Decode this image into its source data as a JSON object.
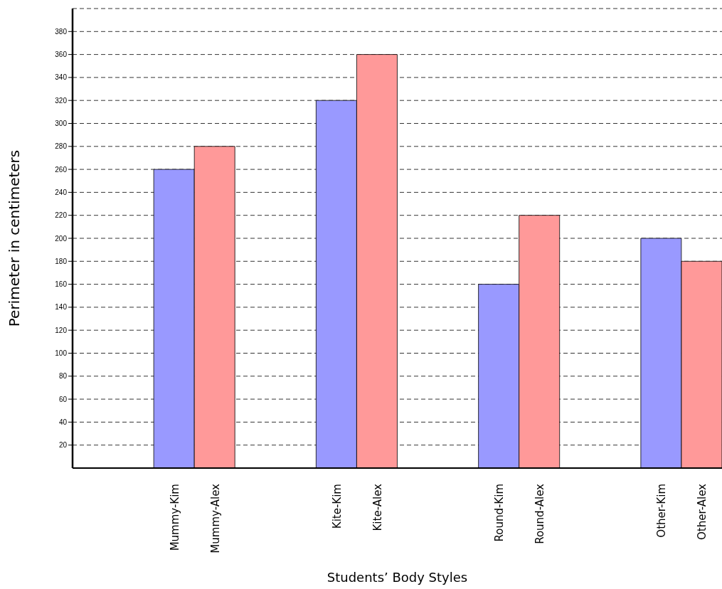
{
  "chart_data": {
    "type": "bar",
    "xlabel": "Students’ Body Styles",
    "ylabel": "Perimeter in centimeters",
    "categories": [
      null,
      null,
      "Mummy-Kim",
      "Mummy-Alex",
      null,
      null,
      "Kite-Kim",
      "Kite-Alex",
      null,
      null,
      "Round-Kim",
      "Round-Alex",
      null,
      null,
      "Other-Kim",
      "Other-Alex"
    ],
    "values": [
      null,
      null,
      260,
      280,
      null,
      null,
      320,
      360,
      null,
      null,
      160,
      220,
      null,
      null,
      200,
      180
    ],
    "colors": [
      "#9999ff",
      "#ff9999",
      "#9999ff",
      "#ff9999",
      "#9999ff",
      "#ff9999",
      "#9999ff",
      "#ff9999",
      "#9999ff",
      "#ff9999",
      "#9999ff",
      "#ff9999",
      "#9999ff",
      "#ff9999",
      "#9999ff",
      "#ff9999"
    ],
    "ylim": [
      0,
      400
    ],
    "yticks": [
      20,
      40,
      60,
      80,
      100,
      120,
      140,
      160,
      180,
      200,
      220,
      240,
      260,
      280,
      300,
      320,
      340,
      360,
      380
    ],
    "grid": "y"
  }
}
